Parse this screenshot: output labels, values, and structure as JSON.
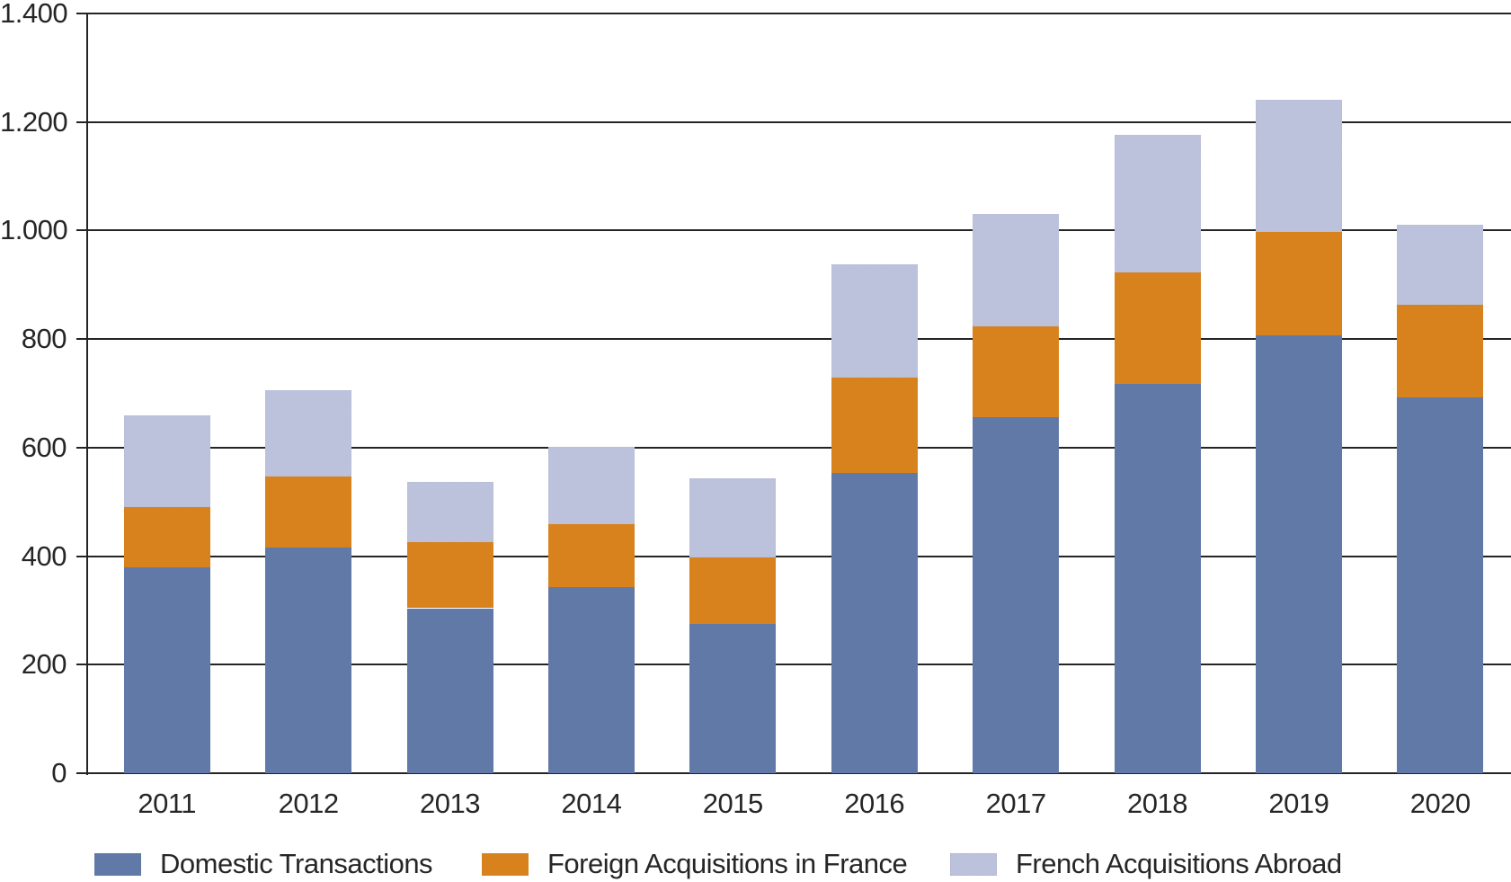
{
  "chart_data": {
    "type": "bar",
    "stacked": true,
    "categories": [
      "2011",
      "2012",
      "2013",
      "2014",
      "2015",
      "2016",
      "2017",
      "2018",
      "2019",
      "2020"
    ],
    "series": [
      {
        "name": "Domestic Transactions",
        "color": "#6179A7",
        "values": [
          380,
          416,
          304,
          343,
          275,
          553,
          656,
          717,
          807,
          693
        ]
      },
      {
        "name": "Foreign Acquisitions in France",
        "color": "#D8821E",
        "values": [
          110,
          131,
          122,
          116,
          123,
          176,
          167,
          206,
          190,
          170
        ]
      },
      {
        "name": "French Acquisitions Abroad",
        "color": "#BDC2DC",
        "values": [
          170,
          159,
          111,
          142,
          145,
          209,
          208,
          253,
          244,
          148
        ]
      }
    ],
    "totals": [
      660,
      706,
      537,
      601,
      543,
      938,
      1031,
      1176,
      1241,
      1011
    ],
    "ylim": [
      0,
      1400
    ],
    "y_ticks": [
      0,
      200,
      400,
      600,
      800,
      1000,
      1200,
      1400
    ],
    "y_tick_labels": [
      "0",
      "200",
      "400",
      "600",
      "800",
      "1.000",
      "1.200",
      "1.400"
    ],
    "grid": true,
    "legend_position": "bottom"
  },
  "style": {
    "axis_color": "#242424",
    "text_color": "#262626",
    "background": "#FFFFFF"
  }
}
